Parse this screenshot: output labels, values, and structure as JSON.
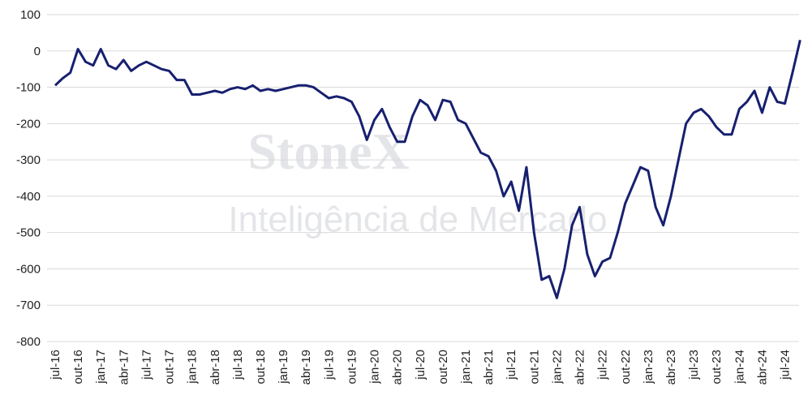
{
  "chart_data": {
    "type": "line",
    "watermark": [
      "StoneX",
      "Inteligência de Mercado"
    ],
    "categories": [
      "jul-16",
      null,
      null,
      "out-16",
      null,
      null,
      "jan-17",
      null,
      null,
      "abr-17",
      null,
      null,
      "jul-17",
      null,
      null,
      "out-17",
      null,
      null,
      "jan-18",
      null,
      null,
      "abr-18",
      null,
      null,
      "jul-18",
      null,
      null,
      "out-18",
      null,
      null,
      "jan-19",
      null,
      null,
      "abr-19",
      null,
      null,
      "jul-19",
      null,
      null,
      "out-19",
      null,
      null,
      "jan-20",
      null,
      null,
      "abr-20",
      null,
      null,
      "jul-20",
      null,
      null,
      "out-20",
      null,
      null,
      "jan-21",
      null,
      null,
      "abr-21",
      null,
      null,
      "jul-21",
      null,
      null,
      "out-21",
      null,
      null,
      "jan-22",
      null,
      null,
      "abr-22",
      null,
      null,
      "jul-22",
      null,
      null,
      "out-22",
      null,
      null,
      "jan-23",
      null,
      null,
      "abr-23",
      null,
      null,
      "jul-23",
      null,
      null,
      "out-23",
      null,
      null,
      "jan-24",
      null,
      null,
      "abr-24",
      null,
      null,
      "jul-24",
      null,
      null
    ],
    "series": [
      {
        "color": "#17206f",
        "values": [
          -95,
          -75,
          -60,
          5,
          -30,
          -40,
          5,
          -40,
          -50,
          -25,
          -55,
          -40,
          -30,
          -40,
          -50,
          -55,
          -80,
          -80,
          -120,
          -120,
          -115,
          -110,
          -115,
          -105,
          -100,
          -105,
          -95,
          -110,
          -105,
          -110,
          -105,
          -100,
          -95,
          -95,
          -100,
          -115,
          -130,
          -125,
          -130,
          -140,
          -180,
          -245,
          -190,
          -160,
          -210,
          -250,
          -250,
          -180,
          -135,
          -150,
          -190,
          -135,
          -140,
          -190,
          -200,
          -240,
          -280,
          -290,
          -330,
          -400,
          -360,
          -440,
          -320,
          -500,
          -630,
          -620,
          -680,
          -600,
          -480,
          -430,
          -560,
          -620,
          -580,
          -570,
          -500,
          -420,
          -370,
          -320,
          -330,
          -430,
          -480,
          -400,
          -300,
          -200,
          -170,
          -160,
          -180,
          -210,
          -230,
          -230,
          -160,
          -140,
          -110,
          -170,
          -100,
          -140,
          -145,
          -60,
          30
        ]
      }
    ],
    "ylim": [
      -800,
      100
    ],
    "yticks": [
      100,
      0,
      -100,
      -200,
      -300,
      -400,
      -500,
      -600,
      -700,
      -800
    ],
    "grid": true
  }
}
